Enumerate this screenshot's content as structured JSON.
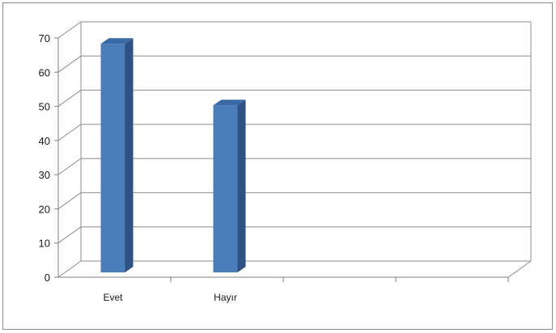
{
  "chart_data": {
    "type": "bar",
    "style": "3d-column",
    "categories": [
      "Evet",
      "Hayır"
    ],
    "empty_slots": 2,
    "series": [
      {
        "values": [
          69,
          51
        ]
      }
    ],
    "ylim": [
      0,
      70
    ],
    "yticks": [
      0,
      10,
      20,
      30,
      40,
      50,
      60,
      70
    ],
    "grid": true,
    "legend": "none",
    "colors": {
      "bar_front": "#4a7ebb",
      "bar_side": "#2e5283",
      "bar_top": "#3a6aa6",
      "grid": "#8c8c8c",
      "axis": "#7f7f7f"
    }
  }
}
